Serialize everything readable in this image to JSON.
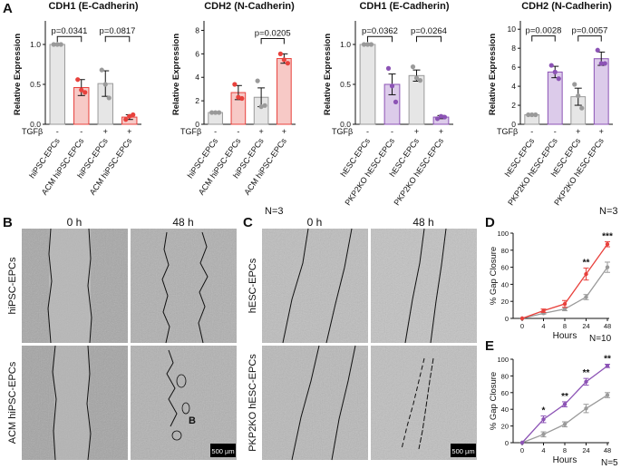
{
  "panel_labels": {
    "A": "A",
    "B": "B",
    "C": "C",
    "D": "D",
    "E": "E"
  },
  "tgf_label": "TGFβ",
  "n_a1": "N=3",
  "n_a2": "N=3",
  "n_d": "N=10",
  "n_e": "N=5",
  "time_labels": {
    "b0": "0 h",
    "b48": "48 h",
    "c0": "0 h",
    "c48": "48 h"
  },
  "row_labels": {
    "b_top": "hiPSC-EPCs",
    "b_bottom": "ACM hiPSC-EPCs",
    "c_top": "hESC-EPCs",
    "c_bottom": "PKP2KO hESC-EPCs"
  },
  "scale_bar": "500 µm",
  "image_annotation": "B",
  "colors": {
    "red": "#e8413c",
    "red_fill": "#f7c9c6",
    "purple": "#8c53b5",
    "purple_fill": "#dccbea",
    "gray": "#9a9a9a",
    "gray_fill": "#e6e6e6"
  },
  "chart_data": [
    {
      "type": "bar",
      "title": "CDH1 (E-Cadherin)",
      "ylabel": "Relative Expression",
      "ylim": [
        0,
        1.25
      ],
      "yticks": [
        0.0,
        0.5,
        1.0
      ],
      "categories": [
        "hiPSC-EPCs",
        "ACM hiPSC-EPCs",
        "hiPSC-EPCs",
        "ACM hiPSC-EPCs"
      ],
      "tgf": [
        "-",
        "-",
        "+",
        "+"
      ],
      "values": [
        1.0,
        0.46,
        0.51,
        0.09
      ],
      "errors": [
        0.0,
        0.1,
        0.16,
        0.03
      ],
      "points": [
        [
          1.0,
          1.0,
          1.0
        ],
        [
          0.56,
          0.43,
          0.4
        ],
        [
          0.68,
          0.5,
          0.33
        ],
        [
          0.06,
          0.1,
          0.12
        ]
      ],
      "group": [
        "gray",
        "red",
        "gray",
        "red"
      ],
      "brackets": [
        {
          "from": 0,
          "to": 1,
          "label": "p=0.0341",
          "y": 1.1
        },
        {
          "from": 2,
          "to": 3,
          "label": "p=0.0817",
          "y": 1.1
        }
      ]
    },
    {
      "type": "bar",
      "title": "CDH2 (N-Cadherin)",
      "ylabel": "Relative Expression",
      "ylim": [
        0,
        8.5
      ],
      "yticks": [
        0,
        2,
        4,
        6,
        8
      ],
      "categories": [
        "hiPSC-EPCs",
        "ACM hiPSC-EPCs",
        "hiPSC-EPCs",
        "ACM hiPSC-EPCs"
      ],
      "tgf": [
        "-",
        "-",
        "+",
        "+"
      ],
      "values": [
        1.0,
        2.7,
        2.3,
        5.6
      ],
      "errors": [
        0.0,
        0.6,
        0.8,
        0.4
      ],
      "points": [
        [
          1.0,
          1.0,
          1.0
        ],
        [
          3.4,
          2.3,
          2.2
        ],
        [
          3.7,
          1.5,
          1.6
        ],
        [
          6.0,
          5.5,
          5.2
        ]
      ],
      "group": [
        "gray",
        "red",
        "gray",
        "red"
      ],
      "brackets": [
        {
          "from": 3,
          "to": 2,
          "label": "p=0.0205",
          "y": 7.3
        }
      ]
    },
    {
      "type": "bar",
      "title": "CDH1 (E-Cadherin)",
      "ylabel": "Relative Expression",
      "ylim": [
        0,
        1.25
      ],
      "yticks": [
        0.0,
        0.5,
        1.0
      ],
      "categories": [
        "hESC-EPCs",
        "PKP2KO hESC-EPCs",
        "hESC-EPCs",
        "PKP2KO hESC-EPCs"
      ],
      "tgf": [
        "-",
        "-",
        "+",
        "+"
      ],
      "values": [
        1.0,
        0.5,
        0.61,
        0.09
      ],
      "errors": [
        0.0,
        0.13,
        0.07,
        0.02
      ],
      "points": [
        [
          1.0,
          1.0,
          1.0
        ],
        [
          0.7,
          0.48,
          0.28
        ],
        [
          0.72,
          0.58,
          0.55
        ],
        [
          0.07,
          0.1,
          0.09
        ]
      ],
      "group": [
        "gray",
        "purple",
        "gray",
        "purple"
      ],
      "brackets": [
        {
          "from": 0,
          "to": 1,
          "label": "p=0.0362",
          "y": 1.1
        },
        {
          "from": 2,
          "to": 3,
          "label": "p=0.0264",
          "y": 1.1
        }
      ]
    },
    {
      "type": "bar",
      "title": "CDH2 (N-Cadherin)",
      "ylabel": "Relative Expression",
      "ylim": [
        0,
        10.5
      ],
      "yticks": [
        0,
        2,
        4,
        6,
        8,
        10
      ],
      "categories": [
        "hESC-EPCs",
        "PKP2KO hESC-EPCs",
        "hESC-EPCs",
        "PKP2KO hESC-EPCs"
      ],
      "tgf": [
        "-",
        "-",
        "+",
        "+"
      ],
      "values": [
        1.0,
        5.5,
        2.9,
        6.9
      ],
      "errors": [
        0.0,
        0.6,
        0.9,
        0.7
      ],
      "points": [
        [
          1.0,
          1.0,
          1.0
        ],
        [
          6.2,
          5.5,
          4.8
        ],
        [
          4.2,
          3.0,
          1.7
        ],
        [
          7.8,
          6.4,
          6.4
        ]
      ],
      "group": [
        "gray",
        "purple",
        "gray",
        "purple"
      ],
      "brackets": [
        {
          "from": 0,
          "to": 1,
          "label": "p=0.0028",
          "y": 9.3
        },
        {
          "from": 2,
          "to": 3,
          "label": "p=0.0057",
          "y": 9.3
        }
      ]
    },
    {
      "type": "line",
      "xlabel": "Hours",
      "ylabel": "% Gap Closure",
      "x": [
        0,
        4,
        8,
        24,
        48
      ],
      "ylim": [
        0,
        100
      ],
      "yticks": [
        0,
        20,
        40,
        60,
        80,
        100
      ],
      "series": [
        {
          "name": "ACM hiPSC-EPCs",
          "color": "red",
          "values": [
            0,
            9,
            17,
            52,
            87
          ],
          "errors": [
            0,
            2,
            4,
            7,
            3
          ]
        },
        {
          "name": "hiPSC-EPCs",
          "color": "gray",
          "values": [
            0,
            6,
            11,
            25,
            60
          ],
          "errors": [
            0,
            1,
            2,
            3,
            6
          ]
        }
      ],
      "significance": [
        {
          "x": 24,
          "label": "**"
        },
        {
          "x": 48,
          "label": "***"
        }
      ]
    },
    {
      "type": "line",
      "xlabel": "Hours",
      "ylabel": "% Gap Closure",
      "x": [
        0,
        4,
        8,
        24,
        48
      ],
      "ylim": [
        0,
        100
      ],
      "yticks": [
        0,
        20,
        40,
        60,
        80,
        100
      ],
      "series": [
        {
          "name": "PKP2KO hESC-EPCs",
          "color": "purple",
          "values": [
            0,
            28,
            46,
            73,
            92
          ],
          "errors": [
            0,
            4,
            3,
            4,
            2
          ]
        },
        {
          "name": "hESC-EPCs",
          "color": "gray",
          "values": [
            0,
            10,
            22,
            41,
            57
          ],
          "errors": [
            0,
            3,
            3,
            5,
            3
          ]
        }
      ],
      "significance": [
        {
          "x": 4,
          "label": "*"
        },
        {
          "x": 8,
          "label": "**"
        },
        {
          "x": 24,
          "label": "**"
        },
        {
          "x": 48,
          "label": "**"
        }
      ]
    }
  ]
}
